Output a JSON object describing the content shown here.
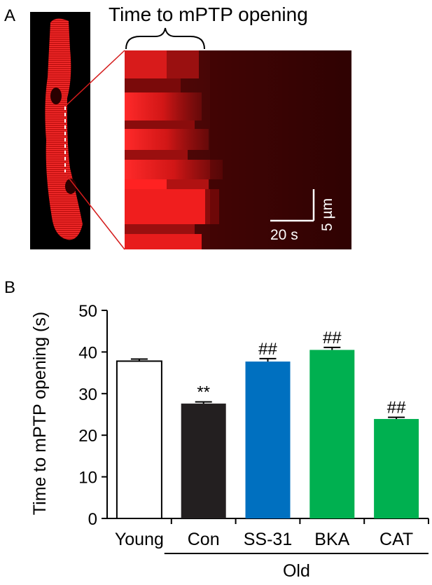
{
  "panel_a": {
    "letter": "A",
    "title": "Time to mPTP opening",
    "scalebar_time": "20 s",
    "scalebar_length": "5 µm"
  },
  "panel_b": {
    "letter": "B"
  },
  "colors": {
    "Young": "#ffffff",
    "Con": "#231f20",
    "SS-31": "#0070c0",
    "BKA": "#00b050",
    "CAT": "#00b050",
    "cell_red": "#e21b1b"
  },
  "chart_data": {
    "type": "bar",
    "categories": [
      "Young",
      "Con",
      "SS-31",
      "BKA",
      "CAT"
    ],
    "values": [
      37.8,
      27.6,
      37.7,
      40.5,
      23.9
    ],
    "errors": [
      0.5,
      0.4,
      0.7,
      0.6,
      0.4
    ],
    "annotations": [
      "",
      "**",
      "##",
      "##",
      "##"
    ],
    "group_label": "Old",
    "group_members": [
      "Con",
      "SS-31",
      "BKA",
      "CAT"
    ],
    "ylabel": "Time to mPTP opening (s)",
    "xlabel": "",
    "ylim": [
      0,
      50
    ],
    "yticks": [
      0,
      10,
      20,
      30,
      40,
      50
    ],
    "grid": false,
    "legend": "none"
  }
}
